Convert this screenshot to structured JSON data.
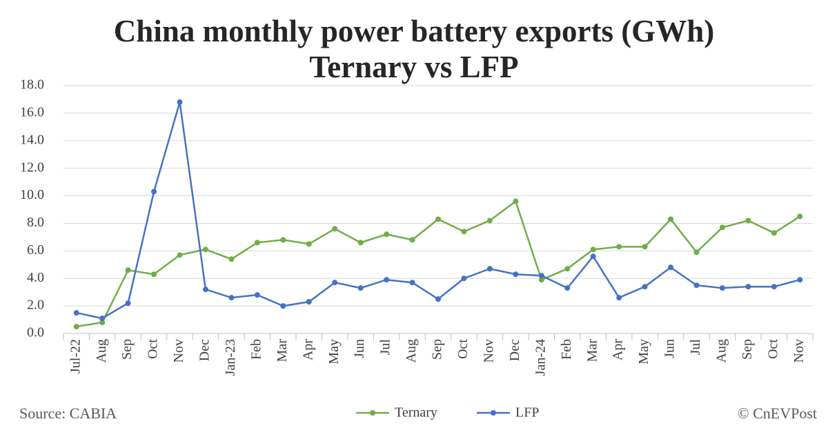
{
  "chart_data": {
    "type": "line",
    "title": "China monthly power battery exports (GWh)",
    "subtitle": "Ternary vs LFP",
    "source": "Source: CABIA",
    "credit": "© CnEVPost",
    "categories": [
      "Jul-22",
      "Aug",
      "Sep",
      "Oct",
      "Nov",
      "Dec",
      "Jan-23",
      "Feb",
      "Mar",
      "Apr",
      "May",
      "Jun",
      "Jul",
      "Aug",
      "Sep",
      "Oct",
      "Nov",
      "Dec",
      "Jan-24",
      "Feb",
      "Mar",
      "Apr",
      "May",
      "Jun",
      "Jul",
      "Aug",
      "Sep",
      "Oct",
      "Nov"
    ],
    "series": [
      {
        "name": "Ternary",
        "color": "#70ad47",
        "values": [
          0.5,
          0.8,
          4.6,
          4.3,
          5.7,
          6.1,
          5.4,
          6.6,
          6.8,
          6.5,
          7.6,
          6.6,
          7.2,
          6.8,
          8.3,
          7.4,
          8.2,
          9.6,
          3.9,
          4.7,
          6.1,
          6.3,
          6.3,
          8.3,
          5.9,
          7.7,
          8.2,
          7.3,
          8.5
        ]
      },
      {
        "name": "LFP",
        "color": "#4472c4",
        "values": [
          1.5,
          1.1,
          2.2,
          10.3,
          16.8,
          3.2,
          2.6,
          2.8,
          2.0,
          2.3,
          3.7,
          3.3,
          3.9,
          3.7,
          2.5,
          4.0,
          4.7,
          4.3,
          4.2,
          3.3,
          5.6,
          2.6,
          3.4,
          4.8,
          3.5,
          3.3,
          3.4,
          3.4,
          3.9
        ]
      }
    ],
    "ylim": [
      0,
      18
    ],
    "yticks": [
      {
        "value": 0,
        "label": "0.0"
      },
      {
        "value": 2,
        "label": "2.0"
      },
      {
        "value": 4,
        "label": "4.0"
      },
      {
        "value": 6,
        "label": "6.0"
      },
      {
        "value": 8,
        "label": "8.0"
      },
      {
        "value": 10,
        "label": "10.0"
      },
      {
        "value": 12,
        "label": "12.0"
      },
      {
        "value": 14,
        "label": "14.0"
      },
      {
        "value": 16,
        "label": "16.0"
      },
      {
        "value": 18,
        "label": "18.0"
      }
    ],
    "grid": true,
    "legend": "bottom"
  }
}
